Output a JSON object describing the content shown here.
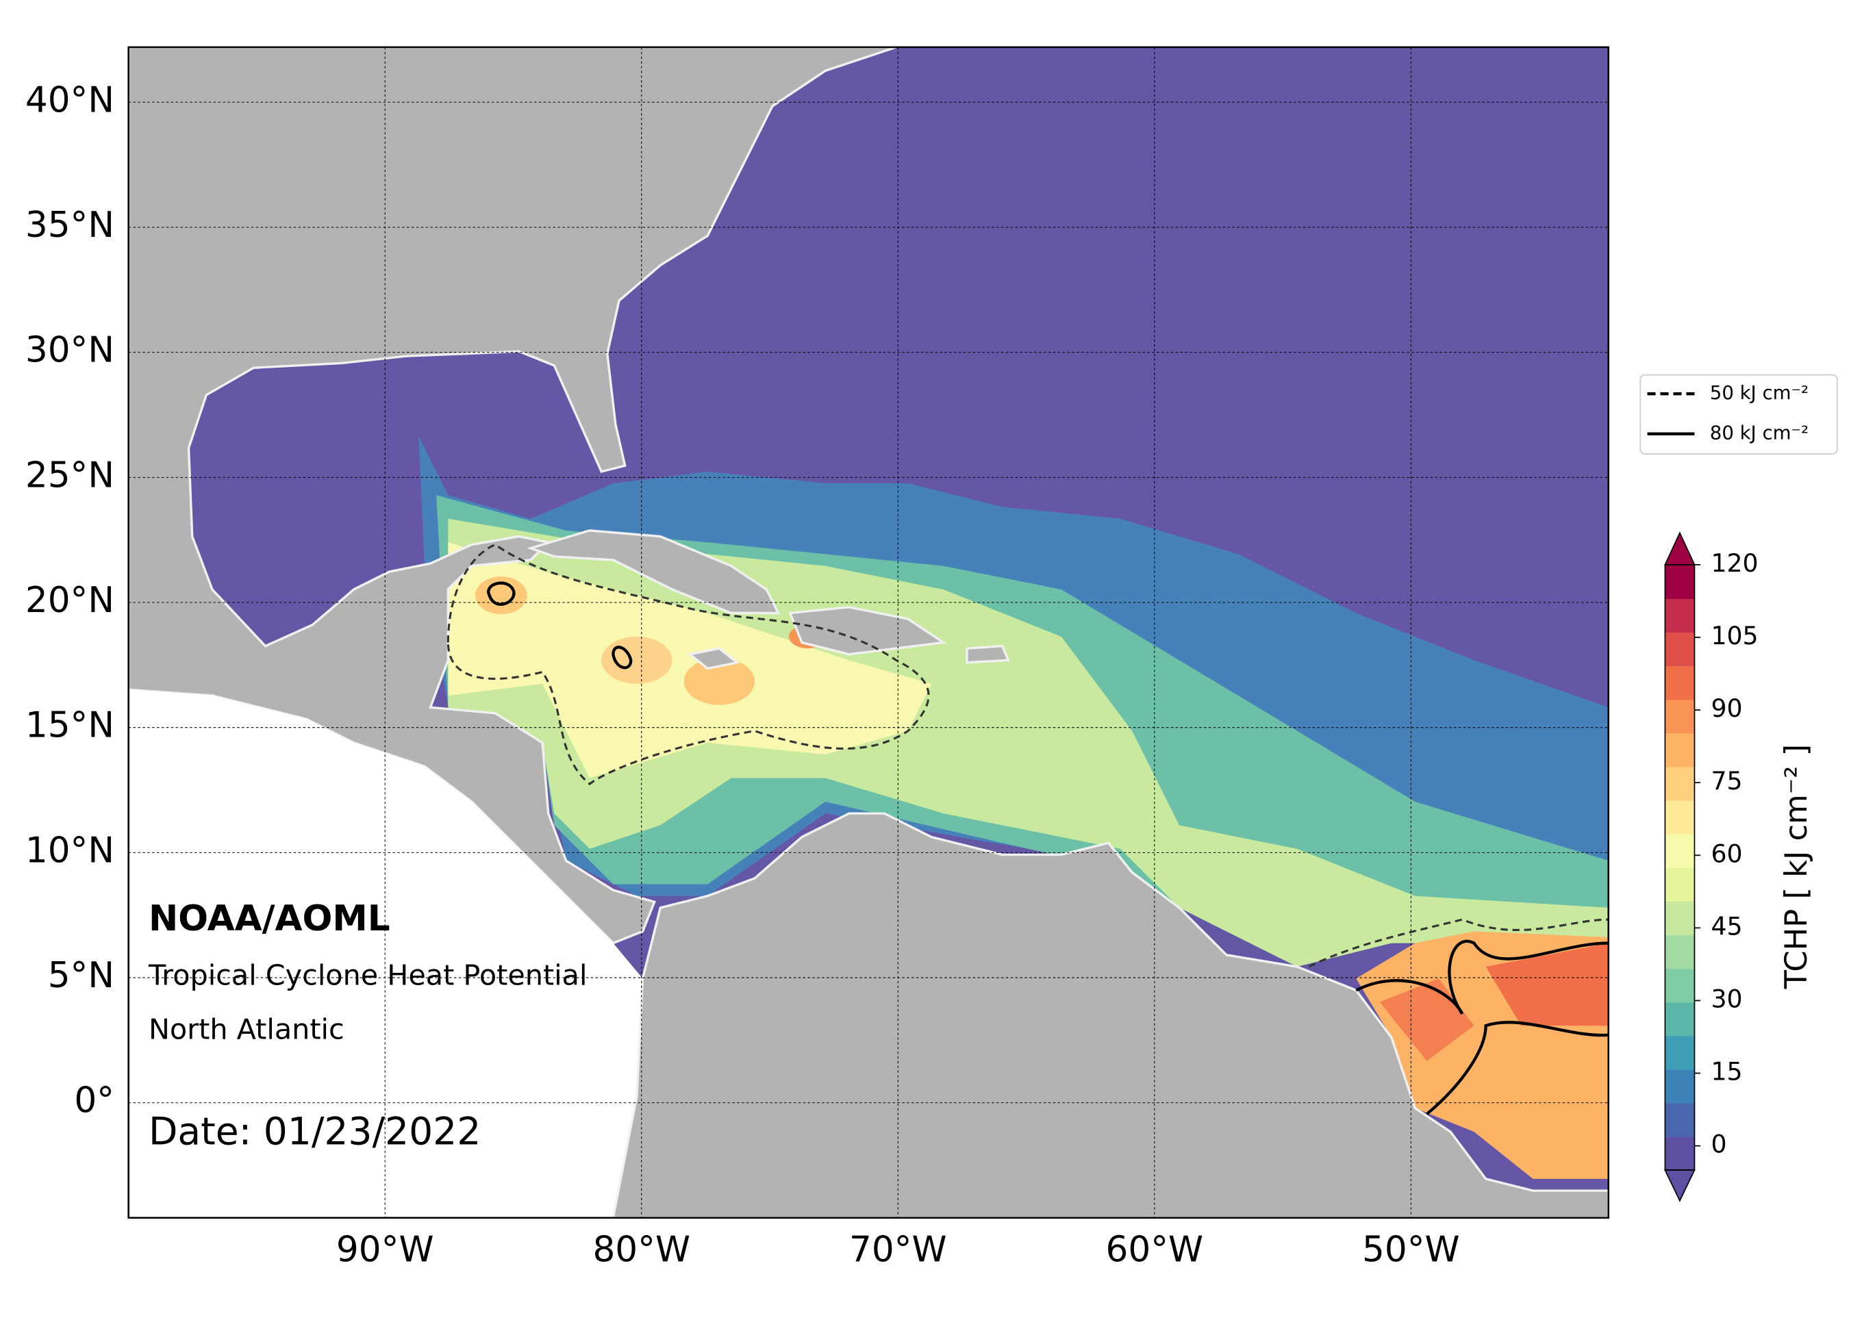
{
  "chart_data": {
    "type": "map",
    "annotations": {
      "org": "NOAA/AOML",
      "product": "Tropical Cyclone Heat Potential",
      "region": "North Atlantic",
      "date": "Date: 01/23/2022"
    },
    "xlim": [
      -100,
      -42.3
    ],
    "ylim": [
      -4.6,
      42.2
    ],
    "xticks": [
      {
        "value": -90,
        "label": "90°W"
      },
      {
        "value": -80,
        "label": "80°W"
      },
      {
        "value": -70,
        "label": "70°W"
      },
      {
        "value": -60,
        "label": "60°W"
      },
      {
        "value": -50,
        "label": "50°W"
      }
    ],
    "yticks": [
      {
        "value": 0,
        "label": "0°"
      },
      {
        "value": 5,
        "label": "5°N"
      },
      {
        "value": 10,
        "label": "10°N"
      },
      {
        "value": 15,
        "label": "15°N"
      },
      {
        "value": 20,
        "label": "20°N"
      },
      {
        "value": 25,
        "label": "25°N"
      },
      {
        "value": 30,
        "label": "30°N"
      },
      {
        "value": 35,
        "label": "35°N"
      },
      {
        "value": 40,
        "label": "40°N"
      }
    ],
    "grid": true,
    "legend": {
      "position": "right",
      "entries": [
        {
          "name": "50 kJ cm⁻²",
          "style": "dashed"
        },
        {
          "name": "80 kJ cm⁻²",
          "style": "solid"
        }
      ]
    },
    "colorbar": {
      "label": "TCHP [ kJ cm⁻² ]",
      "lim": [
        -5,
        120
      ],
      "ticks": [
        0,
        15,
        30,
        45,
        60,
        75,
        90,
        105,
        120
      ],
      "extend": "both",
      "colors": [
        "#5e4fa2",
        "#4a67ad",
        "#3e83b8",
        "#3f9fb6",
        "#5cb7a9",
        "#7fcba4",
        "#a4daa4",
        "#c7e89e",
        "#e4f49b",
        "#f6faac",
        "#fee999",
        "#fed07e",
        "#fdb365",
        "#f99455",
        "#f1704a",
        "#e0504a",
        "#c42d4c",
        "#9e0142"
      ]
    }
  }
}
